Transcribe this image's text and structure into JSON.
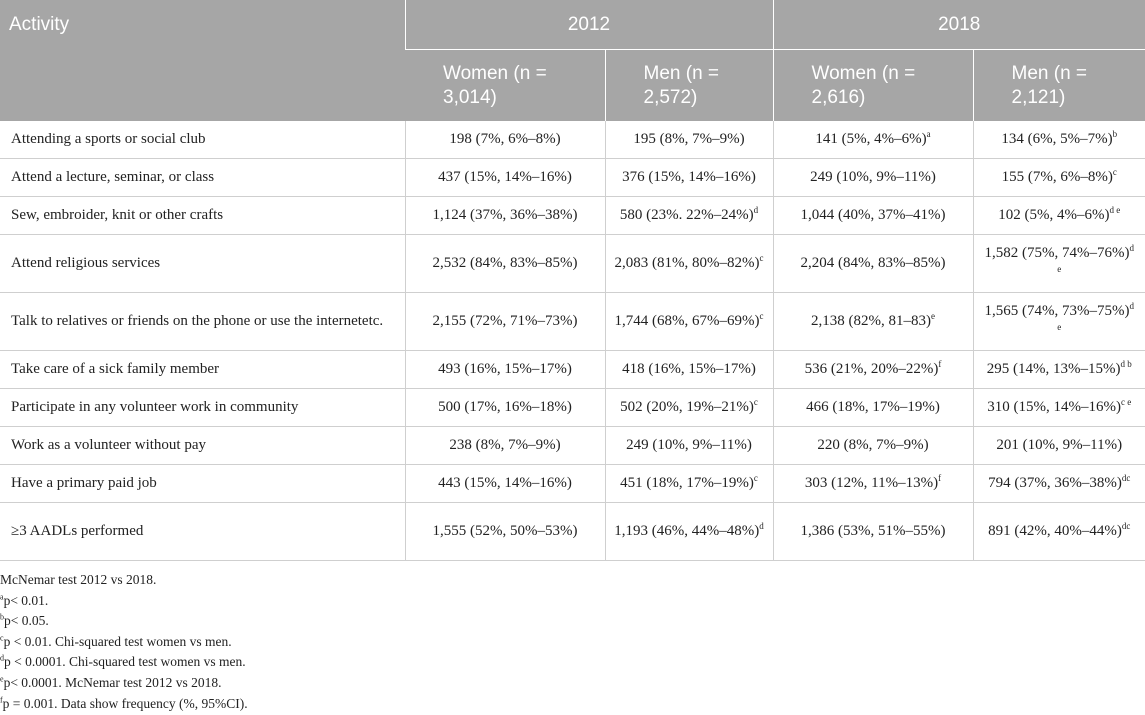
{
  "header": {
    "activity_label": "Activity",
    "year1": "2012",
    "year2": "2018",
    "women_2012": "Women (n = 3,014)",
    "men_2012": "Men (n = 2,572)",
    "women_2018": "Women (n = 2,616)",
    "men_2018": "Men (n = 2,121)"
  },
  "rows": [
    {
      "activity": "Attending a sports or social club",
      "w2012": "198 (7%, 6%–8%)",
      "w2012_sup": "",
      "m2012": "195 (8%, 7%–9%)",
      "m2012_sup": "",
      "w2018": "141 (5%, 4%–6%)",
      "w2018_sup": "a",
      "m2018": "134 (6%, 5%–7%)",
      "m2018_sup": "b"
    },
    {
      "activity": "Attend a lecture, seminar, or class",
      "w2012": "437 (15%, 14%–16%)",
      "w2012_sup": "",
      "m2012": "376 (15%, 14%–16%)",
      "m2012_sup": "",
      "w2018": "249 (10%, 9%–11%)",
      "w2018_sup": "",
      "m2018": "155 (7%, 6%–8%)",
      "m2018_sup": "c"
    },
    {
      "activity": "Sew, embroider, knit or other crafts",
      "w2012": "1,124 (37%, 36%–38%)",
      "w2012_sup": "",
      "m2012": "580 (23%. 22%–24%)",
      "m2012_sup": "d",
      "w2018": "1,044 (40%, 37%–41%)",
      "w2018_sup": "",
      "m2018": "102 (5%, 4%–6%)",
      "m2018_sup": "d e"
    },
    {
      "activity": "Attend religious services",
      "w2012": "2,532 (84%, 83%–85%)",
      "w2012_sup": "",
      "m2012": "2,083 (81%, 80%–82%)",
      "m2012_sup": "c",
      "w2018": "2,204 (84%, 83%–85%)",
      "w2018_sup": "",
      "m2018": "1,582 (75%, 74%–76%)",
      "m2018_sup": "d e"
    },
    {
      "activity": "Talk to relatives or friends on the phone or use the internetetc.",
      "w2012": "2,155 (72%, 71%–73%)",
      "w2012_sup": "",
      "m2012": "1,744 (68%, 67%–69%)",
      "m2012_sup": "c",
      "w2018": "2,138 (82%, 81–83)",
      "w2018_sup": "e",
      "m2018": "1,565 (74%, 73%–75%)",
      "m2018_sup": "d e"
    },
    {
      "activity": "Take care of a sick family member",
      "w2012": "493 (16%, 15%–17%)",
      "w2012_sup": "",
      "m2012": "418 (16%, 15%–17%)",
      "m2012_sup": "",
      "w2018": "536 (21%, 20%–22%)",
      "w2018_sup": "f",
      "m2018": "295 (14%, 13%–15%)",
      "m2018_sup": "d b"
    },
    {
      "activity": "Participate in any volunteer work in community",
      "w2012": "500 (17%, 16%–18%)",
      "w2012_sup": "",
      "m2012": "502 (20%, 19%–21%)",
      "m2012_sup": "c",
      "w2018": "466 (18%, 17%–19%)",
      "w2018_sup": "",
      "m2018": "310 (15%, 14%–16%)",
      "m2018_sup": "c e"
    },
    {
      "activity": "Work as a volunteer without pay",
      "w2012": "238 (8%, 7%–9%)",
      "w2012_sup": "",
      "m2012": "249 (10%, 9%–11%)",
      "m2012_sup": "",
      "w2018": "220 (8%, 7%–9%)",
      "w2018_sup": "",
      "m2018": "201 (10%, 9%–11%)",
      "m2018_sup": ""
    },
    {
      "activity": "Have a primary paid job",
      "w2012": "443 (15%, 14%–16%)",
      "w2012_sup": "",
      "m2012": "451 (18%, 17%–19%)",
      "m2012_sup": "c",
      "w2018": "303 (12%, 11%–13%)",
      "w2018_sup": "f",
      "m2018": "794 (37%, 36%–38%)",
      "m2018_sup": "dc"
    },
    {
      "activity": "≥3 AADLs performed",
      "w2012": "1,555 (52%, 50%–53%)",
      "w2012_sup": "",
      "m2012": "1,193 (46%, 44%–48%)",
      "m2012_sup": "d",
      "w2018": "1,386 (53%, 51%–55%)",
      "w2018_sup": "",
      "m2018": "891 (42%, 40%–44%)",
      "m2018_sup": "dc"
    }
  ],
  "footnotes": [
    {
      "mark": "",
      "text": "McNemar test 2012 vs 2018."
    },
    {
      "mark": "a",
      "text": "p< 0.01."
    },
    {
      "mark": "b",
      "text": "p< 0.05."
    },
    {
      "mark": "c",
      "text": "p < 0.01. Chi-squared test women vs men."
    },
    {
      "mark": "d",
      "text": "p < 0.0001. Chi-squared test women vs men."
    },
    {
      "mark": "e",
      "text": "p< 0.0001. McNemar test 2012 vs 2018."
    },
    {
      "mark": "f",
      "text": "p = 0.001. Data show frequency (%, 95%CI)."
    }
  ]
}
